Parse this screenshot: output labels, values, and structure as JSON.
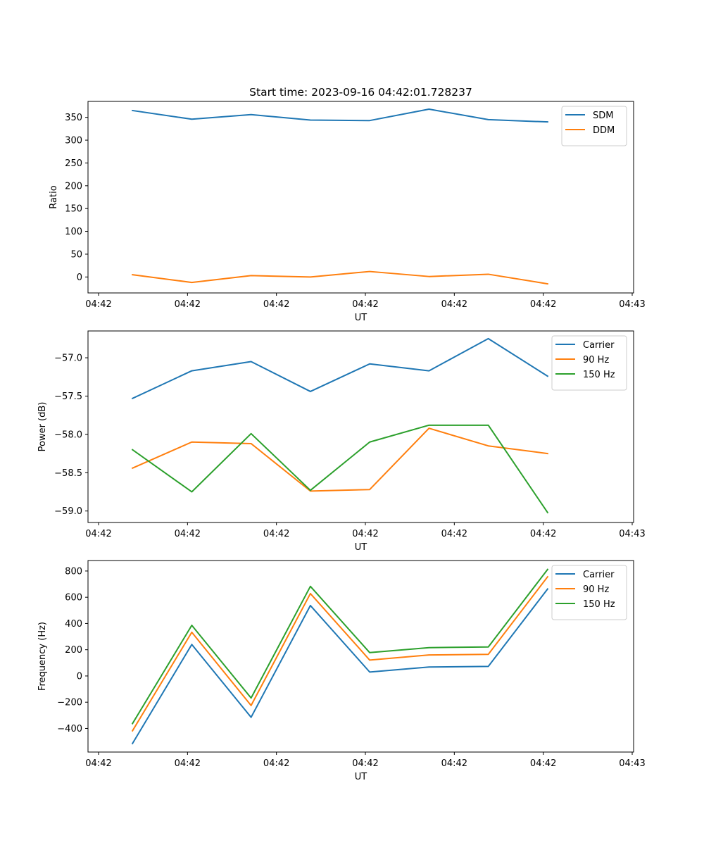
{
  "chart_data": [
    {
      "type": "line",
      "title": "Start time: 2023-09-16 04:42:01.728237",
      "xlabel": "UT",
      "ylabel": "Ratio",
      "x_ticks": [
        "04:42",
        "04:42",
        "04:42",
        "04:42",
        "04:42",
        "04:42",
        "04:43"
      ],
      "x": [
        0,
        1,
        2,
        3,
        4,
        5,
        6,
        7
      ],
      "xlim": [
        -0.75,
        8.45
      ],
      "ylim": [
        -35,
        385
      ],
      "y_ticks": [
        0,
        50,
        100,
        150,
        200,
        250,
        300,
        350
      ],
      "y_tick_labels": [
        "0",
        "50",
        "100",
        "150",
        "200",
        "250",
        "300",
        "350"
      ],
      "legend_position": "top-right",
      "series": [
        {
          "name": "SDM",
          "color": "#1f77b4",
          "values": [
            365,
            346,
            356,
            344,
            343,
            368,
            345,
            340
          ]
        },
        {
          "name": "DDM",
          "color": "#ff7f0e",
          "values": [
            5,
            -12,
            3,
            0,
            12,
            1,
            6,
            -15
          ]
        }
      ]
    },
    {
      "type": "line",
      "title": "",
      "xlabel": "UT",
      "ylabel": "Power (dB)",
      "x_ticks": [
        "04:42",
        "04:42",
        "04:42",
        "04:42",
        "04:42",
        "04:42",
        "04:43"
      ],
      "x": [
        0,
        1,
        2,
        3,
        4,
        5,
        6,
        7
      ],
      "xlim": [
        -0.75,
        8.45
      ],
      "ylim": [
        -59.15,
        -56.65
      ],
      "y_ticks": [
        -59.0,
        -58.5,
        -58.0,
        -57.5,
        -57.0
      ],
      "y_tick_labels": [
        "−59.0",
        "−58.5",
        "−58.0",
        "−57.5",
        "−57.0"
      ],
      "legend_position": "top-right",
      "series": [
        {
          "name": "Carrier",
          "color": "#1f77b4",
          "values": [
            -57.53,
            -57.17,
            -57.05,
            -57.44,
            -57.08,
            -57.17,
            -56.75,
            -57.24
          ]
        },
        {
          "name": "90 Hz",
          "color": "#ff7f0e",
          "values": [
            -58.44,
            -58.1,
            -58.12,
            -58.74,
            -58.72,
            -57.92,
            -58.15,
            -58.25
          ]
        },
        {
          "name": "150 Hz",
          "color": "#2ca02c",
          "values": [
            -58.2,
            -58.75,
            -57.99,
            -58.73,
            -58.1,
            -57.88,
            -57.88,
            -59.02
          ]
        }
      ]
    },
    {
      "type": "line",
      "title": "",
      "xlabel": "UT",
      "ylabel": "Frequency (Hz)",
      "x_ticks": [
        "04:42",
        "04:42",
        "04:42",
        "04:42",
        "04:42",
        "04:42",
        "04:43"
      ],
      "x": [
        0,
        1,
        2,
        3,
        4,
        5,
        6,
        7
      ],
      "xlim": [
        -0.75,
        8.45
      ],
      "ylim": [
        -580,
        880
      ],
      "y_ticks": [
        -400,
        -200,
        0,
        200,
        400,
        600,
        800
      ],
      "y_tick_labels": [
        "−400",
        "−200",
        "0",
        "200",
        "400",
        "600",
        "800"
      ],
      "legend_position": "top-right",
      "series": [
        {
          "name": "Carrier",
          "color": "#1f77b4",
          "values": [
            -515,
            240,
            -315,
            537,
            30,
            68,
            73,
            663
          ]
        },
        {
          "name": "90 Hz",
          "color": "#ff7f0e",
          "values": [
            -418,
            333,
            -225,
            628,
            121,
            160,
            165,
            756
          ]
        },
        {
          "name": "150 Hz",
          "color": "#2ca02c",
          "values": [
            -363,
            386,
            -168,
            683,
            178,
            216,
            221,
            812
          ]
        }
      ]
    }
  ]
}
